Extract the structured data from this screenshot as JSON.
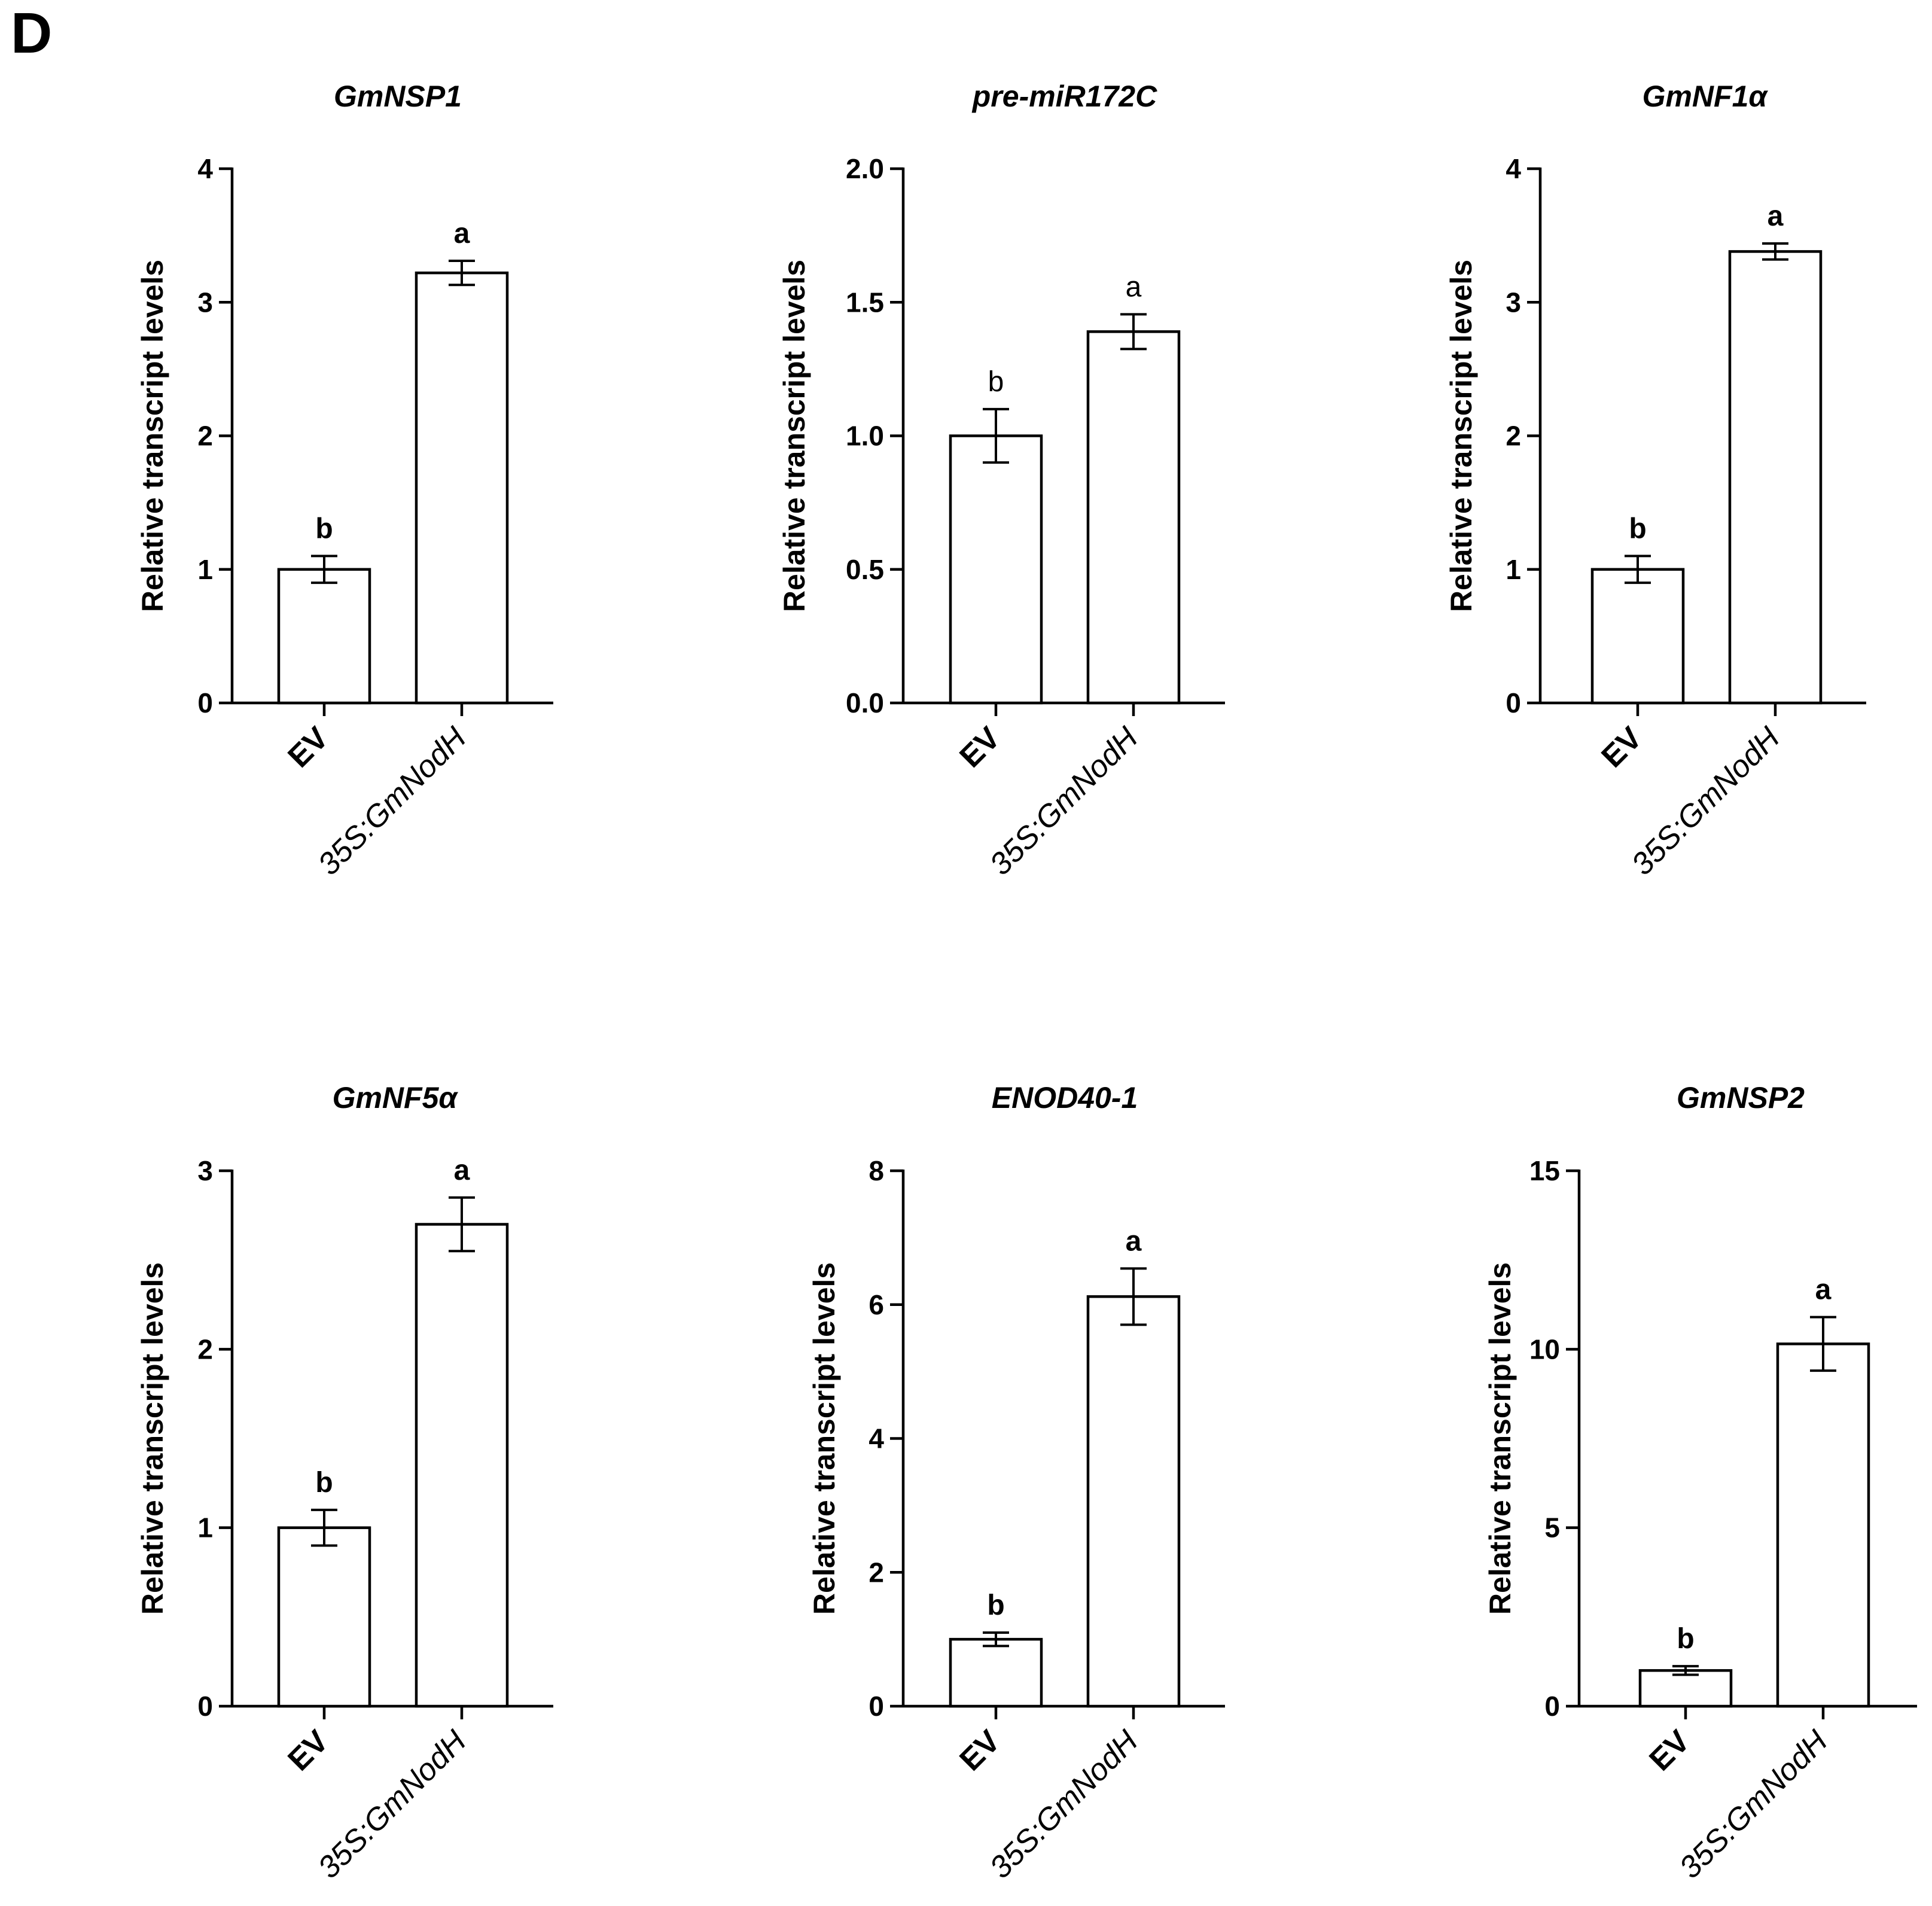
{
  "panel_label": "D",
  "chart_data": [
    {
      "type": "bar",
      "title": "GmNSP1",
      "ylabel": "Relative transcript levels",
      "xlabel": "",
      "ylim": [
        0,
        4
      ],
      "yticks": [
        0,
        1,
        2,
        3,
        4
      ],
      "ytick_labels": [
        "0",
        "1",
        "2",
        "3",
        "4"
      ],
      "categories": [
        "EV",
        "35S:GmNodH"
      ],
      "values": [
        1.0,
        3.22
      ],
      "errors": [
        0.1,
        0.09
      ],
      "significance": [
        "b",
        "a"
      ],
      "sig_bold": true
    },
    {
      "type": "bar",
      "title": "pre-miR172C",
      "ylabel": "Relative transcript levels",
      "xlabel": "",
      "ylim": [
        0,
        2.0
      ],
      "yticks": [
        0,
        0.5,
        1.0,
        1.5,
        2.0
      ],
      "ytick_labels": [
        "0.0",
        "0.5",
        "1.0",
        "1.5",
        "2.0"
      ],
      "categories": [
        "EV",
        "35S:GmNodH"
      ],
      "values": [
        1.0,
        1.39
      ],
      "errors": [
        0.1,
        0.065
      ],
      "significance": [
        "b",
        "a"
      ],
      "sig_bold": false
    },
    {
      "type": "bar",
      "title": "GmNF1α",
      "ylabel": "Relative transcript levels",
      "xlabel": "",
      "ylim": [
        0,
        4
      ],
      "yticks": [
        0,
        1,
        2,
        3,
        4
      ],
      "ytick_labels": [
        "0",
        "1",
        "2",
        "3",
        "4"
      ],
      "categories": [
        "EV",
        "35S:GmNodH"
      ],
      "values": [
        1.0,
        3.38
      ],
      "errors": [
        0.1,
        0.06
      ],
      "significance": [
        "b",
        "a"
      ],
      "sig_bold": true
    },
    {
      "type": "bar",
      "title": "GmNF5α",
      "ylabel": "Relative transcript levels",
      "xlabel": "",
      "ylim": [
        0,
        3
      ],
      "yticks": [
        0,
        1,
        2,
        3
      ],
      "ytick_labels": [
        "0",
        "1",
        "2",
        "3"
      ],
      "categories": [
        "EV",
        "35S:GmNodH"
      ],
      "values": [
        1.0,
        2.7
      ],
      "errors": [
        0.1,
        0.15
      ],
      "significance": [
        "b",
        "a"
      ],
      "sig_bold": true
    },
    {
      "type": "bar",
      "title": "ENOD40-1",
      "ylabel": "Relative transcript levels",
      "xlabel": "",
      "ylim": [
        0,
        8
      ],
      "yticks": [
        0,
        2,
        4,
        6,
        8
      ],
      "ytick_labels": [
        "0",
        "2",
        "4",
        "6",
        "8"
      ],
      "categories": [
        "EV",
        "35S:GmNodH"
      ],
      "values": [
        1.0,
        6.12
      ],
      "errors": [
        0.1,
        0.42
      ],
      "significance": [
        "b",
        "a"
      ],
      "sig_bold": true
    },
    {
      "type": "bar",
      "title": "GmNSP2",
      "ylabel": "Relative transcript levels",
      "xlabel": "",
      "ylim": [
        0,
        15
      ],
      "yticks": [
        0,
        5,
        10,
        15
      ],
      "ytick_labels": [
        "0",
        "5",
        "10",
        "15"
      ],
      "categories": [
        "EV",
        "35S:GmNodH"
      ],
      "values": [
        1.0,
        10.15
      ],
      "errors": [
        0.12,
        0.75
      ],
      "significance": [
        "b",
        "a"
      ],
      "sig_bold": true
    }
  ]
}
